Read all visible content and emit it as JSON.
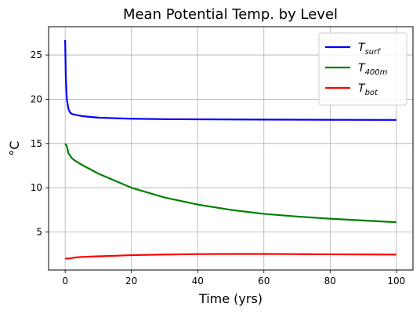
{
  "chart_data": {
    "type": "line",
    "title": "Mean Potential Temp. by Level",
    "xlabel": "Time (yrs)",
    "ylabel": "°C",
    "xlim": [
      -5,
      105
    ],
    "ylim": [
      0.7,
      28.2
    ],
    "xticks": [
      0,
      20,
      40,
      60,
      80,
      100
    ],
    "yticks": [
      5,
      10,
      15,
      20,
      25
    ],
    "grid": true,
    "legend_position": "top-right",
    "series": [
      {
        "name": "T",
        "subscript": "surf",
        "color": "#0000ff",
        "x": [
          0,
          0.2,
          0.5,
          1,
          1.5,
          2,
          3,
          5,
          10,
          20,
          30,
          40,
          60,
          80,
          100
        ],
        "y": [
          26.7,
          22.5,
          20.0,
          18.9,
          18.5,
          18.35,
          18.25,
          18.1,
          17.92,
          17.8,
          17.75,
          17.73,
          17.7,
          17.68,
          17.66
        ]
      },
      {
        "name": "T",
        "subscript": "400m",
        "color": "#008000",
        "x": [
          0,
          0.5,
          1,
          2,
          3,
          5,
          10,
          15,
          20,
          30,
          40,
          50,
          60,
          70,
          80,
          90,
          100
        ],
        "y": [
          15.0,
          14.7,
          13.9,
          13.35,
          13.05,
          12.6,
          11.6,
          10.8,
          10.0,
          8.9,
          8.1,
          7.5,
          7.05,
          6.75,
          6.5,
          6.3,
          6.1
        ]
      },
      {
        "name": "T",
        "subscript": "bot",
        "color": "#ff0000",
        "x": [
          0,
          1,
          2,
          3,
          5,
          10,
          20,
          30,
          40,
          50,
          60,
          70,
          80,
          90,
          100
        ],
        "y": [
          2.0,
          2.0,
          2.05,
          2.12,
          2.18,
          2.25,
          2.38,
          2.45,
          2.5,
          2.52,
          2.52,
          2.5,
          2.48,
          2.46,
          2.45
        ]
      }
    ]
  }
}
